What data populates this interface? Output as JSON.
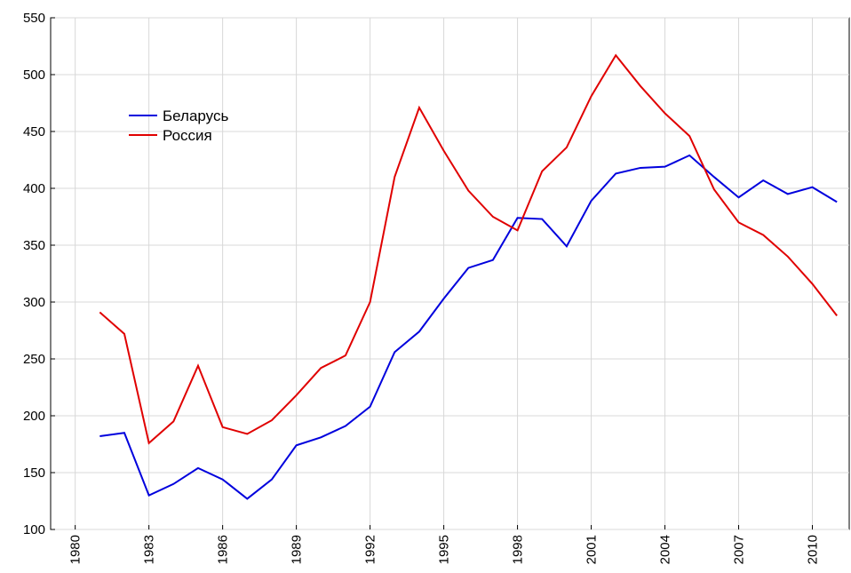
{
  "chart_data": {
    "type": "line",
    "x": [
      1981,
      1982,
      1983,
      1984,
      1985,
      1986,
      1987,
      1988,
      1989,
      1990,
      1991,
      1992,
      1993,
      1994,
      1995,
      1996,
      1997,
      1998,
      1999,
      2000,
      2001,
      2002,
      2003,
      2004,
      2005,
      2006,
      2007,
      2008,
      2009,
      2010,
      2011
    ],
    "series": [
      {
        "name": "Беларусь",
        "color": "#0000dd",
        "values": [
          182,
          185,
          130,
          140,
          154,
          144,
          127,
          144,
          174,
          181,
          191,
          208,
          256,
          274,
          303,
          330,
          337,
          374,
          373,
          349,
          389,
          413,
          418,
          419,
          429,
          410,
          392,
          407,
          395,
          401,
          388
        ]
      },
      {
        "name": "Россия",
        "color": "#e00000",
        "values": [
          291,
          272,
          176,
          195,
          244,
          190,
          184,
          196,
          218,
          242,
          253,
          300,
          410,
          471,
          433,
          398,
          375,
          363,
          415,
          436,
          481,
          517,
          490,
          466,
          446,
          399,
          370,
          359,
          340,
          316,
          288
        ]
      }
    ],
    "xlim": [
      1979,
      2011.5
    ],
    "xticks": [
      1980,
      1983,
      1986,
      1989,
      1992,
      1995,
      1998,
      2001,
      2004,
      2007,
      2010
    ],
    "ylim": [
      100,
      550
    ],
    "yticks": [
      100,
      150,
      200,
      250,
      300,
      350,
      400,
      450,
      500,
      550
    ],
    "grid": true,
    "legend": "upper left"
  }
}
